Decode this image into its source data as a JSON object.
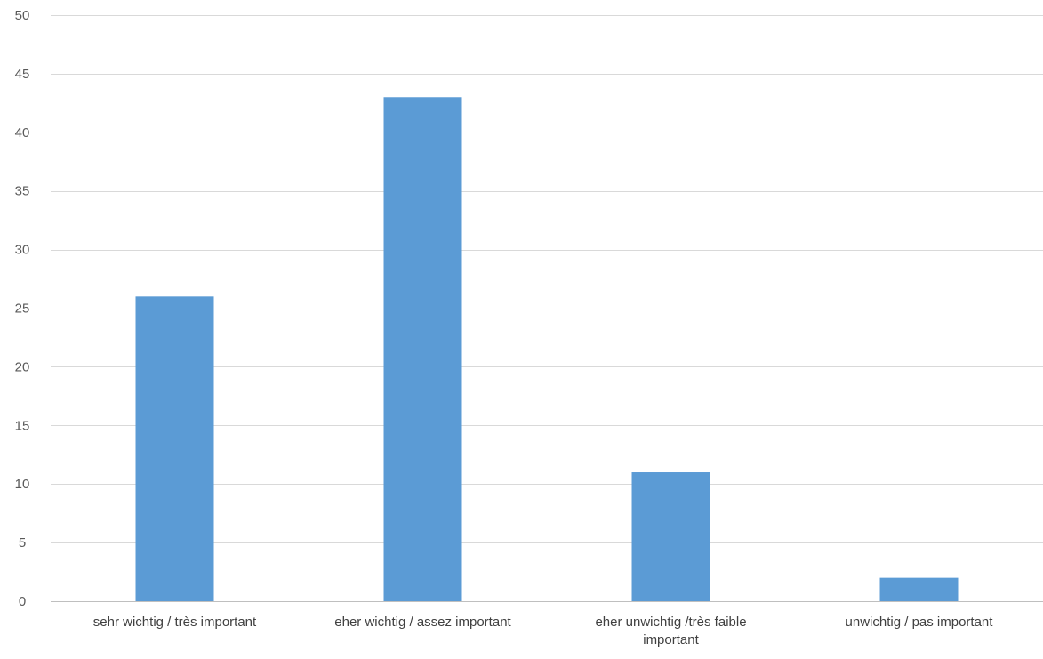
{
  "chart_data": {
    "type": "bar",
    "title": "",
    "xlabel": "",
    "ylabel": "",
    "categories": [
      "sehr wichtig / très important",
      "eher wichtig / assez important",
      "eher unwichtig /très faible important",
      "unwichtig / pas important"
    ],
    "category_label_lines": [
      [
        "sehr wichtig / très important"
      ],
      [
        "eher wichtig / assez important"
      ],
      [
        "eher unwichtig /très faible",
        "important"
      ],
      [
        "unwichtig / pas important"
      ]
    ],
    "values": [
      26,
      43,
      11,
      2
    ],
    "ylim": [
      0,
      50
    ],
    "yticks": [
      0,
      5,
      10,
      15,
      20,
      25,
      30,
      35,
      40,
      45,
      50
    ],
    "grid": true,
    "legend": "none",
    "bar_color": "#5b9bd5"
  }
}
